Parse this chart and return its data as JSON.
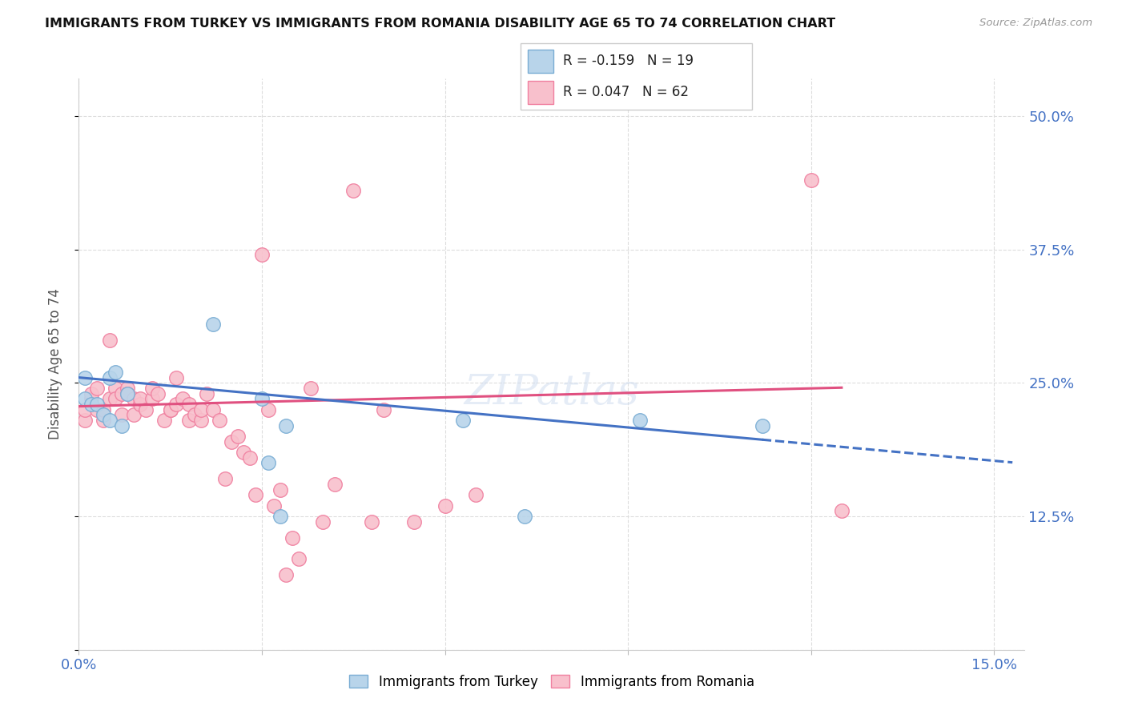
{
  "title": "IMMIGRANTS FROM TURKEY VS IMMIGRANTS FROM ROMANIA DISABILITY AGE 65 TO 74 CORRELATION CHART",
  "source": "Source: ZipAtlas.com",
  "ylabel": "Disability Age 65 to 74",
  "xlim": [
    0.0,
    0.155
  ],
  "ylim": [
    0.0,
    0.535
  ],
  "x_ticks": [
    0.0,
    0.03,
    0.06,
    0.09,
    0.12,
    0.15
  ],
  "x_tick_labels": [
    "0.0%",
    "",
    "",
    "",
    "",
    "15.0%"
  ],
  "y_ticks": [
    0.0,
    0.125,
    0.25,
    0.375,
    0.5
  ],
  "y_tick_labels_right": [
    "",
    "12.5%",
    "25.0%",
    "37.5%",
    "50.0%"
  ],
  "legend_R_turkey": "R = -0.159",
  "legend_N_turkey": "N = 19",
  "legend_R_romania": "R = 0.047",
  "legend_N_romania": "N = 62",
  "legend_label_turkey": "Immigrants from Turkey",
  "legend_label_romania": "Immigrants from Romania",
  "color_turkey_fill": "#b8d4ea",
  "color_turkey_edge": "#7aadd4",
  "color_romania_fill": "#f8c0cc",
  "color_romania_edge": "#f080a0",
  "color_trend_turkey": "#4472c4",
  "color_trend_romania": "#e05080",
  "turkey_intercept": 0.255,
  "turkey_slope": -0.52,
  "romania_intercept": 0.228,
  "romania_slope": 0.14,
  "turkey_x": [
    0.001,
    0.001,
    0.002,
    0.003,
    0.004,
    0.005,
    0.005,
    0.006,
    0.007,
    0.008,
    0.022,
    0.03,
    0.031,
    0.033,
    0.034,
    0.063,
    0.073,
    0.092,
    0.112
  ],
  "turkey_y": [
    0.255,
    0.235,
    0.23,
    0.23,
    0.22,
    0.255,
    0.215,
    0.26,
    0.21,
    0.24,
    0.305,
    0.235,
    0.175,
    0.125,
    0.21,
    0.215,
    0.125,
    0.215,
    0.21
  ],
  "romania_x": [
    0.001,
    0.001,
    0.002,
    0.002,
    0.003,
    0.003,
    0.004,
    0.004,
    0.005,
    0.005,
    0.006,
    0.006,
    0.007,
    0.007,
    0.008,
    0.008,
    0.009,
    0.009,
    0.01,
    0.01,
    0.011,
    0.012,
    0.012,
    0.013,
    0.014,
    0.015,
    0.015,
    0.016,
    0.016,
    0.017,
    0.018,
    0.018,
    0.019,
    0.02,
    0.02,
    0.021,
    0.022,
    0.023,
    0.024,
    0.025,
    0.026,
    0.027,
    0.028,
    0.029,
    0.03,
    0.031,
    0.032,
    0.033,
    0.034,
    0.035,
    0.036,
    0.038,
    0.04,
    0.042,
    0.045,
    0.048,
    0.05,
    0.055,
    0.06,
    0.065,
    0.12,
    0.125
  ],
  "romania_y": [
    0.215,
    0.225,
    0.235,
    0.24,
    0.225,
    0.245,
    0.215,
    0.225,
    0.29,
    0.235,
    0.245,
    0.235,
    0.22,
    0.24,
    0.245,
    0.24,
    0.22,
    0.235,
    0.23,
    0.235,
    0.225,
    0.235,
    0.245,
    0.24,
    0.215,
    0.225,
    0.225,
    0.255,
    0.23,
    0.235,
    0.23,
    0.215,
    0.22,
    0.215,
    0.225,
    0.24,
    0.225,
    0.215,
    0.16,
    0.195,
    0.2,
    0.185,
    0.18,
    0.145,
    0.37,
    0.225,
    0.135,
    0.15,
    0.07,
    0.105,
    0.085,
    0.245,
    0.12,
    0.155,
    0.43,
    0.12,
    0.225,
    0.12,
    0.135,
    0.145,
    0.44,
    0.13
  ]
}
